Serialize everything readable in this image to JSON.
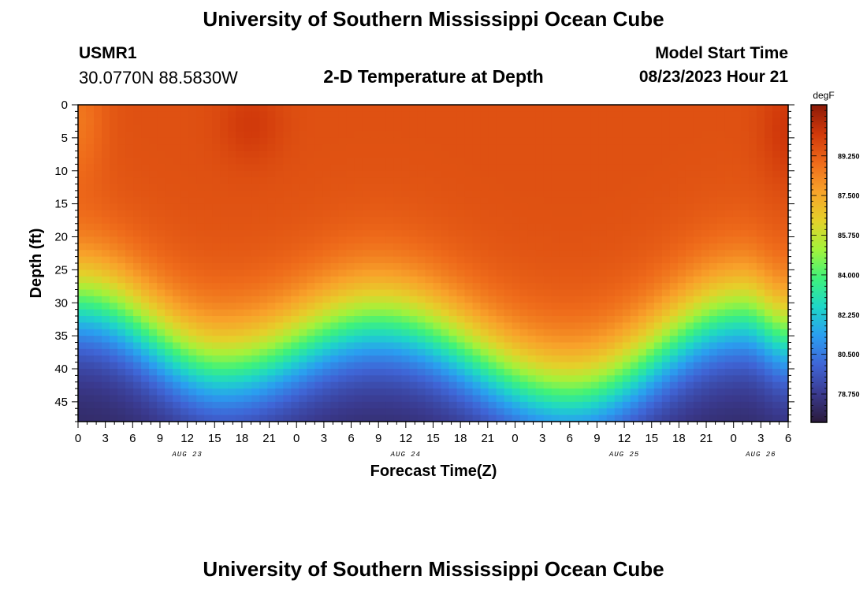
{
  "header": {
    "title": "University of Southern Mississippi Ocean Cube",
    "station": "USMR1",
    "coords": "30.0770N  88.5830W",
    "subtitle": "2-D Temperature at Depth",
    "model_start_label": "Model Start Time",
    "model_start_value": "08/23/2023 Hour 21"
  },
  "footer": {
    "title": "University of Southern Mississippi Ocean Cube"
  },
  "chart_data": {
    "type": "heatmap",
    "title": "2-D Temperature at Depth",
    "xlabel": "Forecast Time(Z)",
    "ylabel": "Depth (ft)",
    "x_tick_labels": [
      "0",
      "3",
      "6",
      "9",
      "12",
      "15",
      "18",
      "21",
      "0",
      "3",
      "6",
      "9",
      "12",
      "15",
      "18",
      "21",
      "0",
      "3",
      "6",
      "9",
      "12",
      "15",
      "18",
      "21",
      "0",
      "3",
      "6"
    ],
    "x_range_hours": [
      0,
      78
    ],
    "date_labels": [
      {
        "label": "AUG 23",
        "hour": 12
      },
      {
        "label": "AUG 24",
        "hour": 36
      },
      {
        "label": "AUG 25",
        "hour": 60
      },
      {
        "label": "AUG 26",
        "hour": 75
      }
    ],
    "y_ticks": [
      0,
      5,
      10,
      15,
      20,
      25,
      30,
      35,
      40,
      45
    ],
    "y_range": [
      0,
      48
    ],
    "colorbar": {
      "unit": "degF",
      "range": [
        77.5,
        91.5
      ],
      "ticks": [
        "89.250",
        "87.500",
        "85.750",
        "84.000",
        "82.250",
        "80.500",
        "78.750"
      ],
      "tick_values": [
        89.25,
        87.5,
        85.75,
        84.0,
        82.25,
        80.5,
        78.75
      ],
      "colors": [
        "#2a1a3a",
        "#3a3a8f",
        "#3f65d6",
        "#2a9ef0",
        "#1ed6c8",
        "#3ff27a",
        "#a4f23a",
        "#e5d02a",
        "#f8a22a",
        "#ee6a1a",
        "#d0380a",
        "#8c1a08"
      ]
    },
    "field_description": {
      "surface_temp_degF": 89.6,
      "bottom_temp_degF": 78.0,
      "thermocline_depth_ft": [
        {
          "hour": 0,
          "depth": 30
        },
        {
          "hour": 16,
          "depth": 40
        },
        {
          "hour": 33,
          "depth": 33
        },
        {
          "hour": 54,
          "depth": 44
        },
        {
          "hour": 73,
          "depth": 32
        },
        {
          "hour": 78,
          "depth": 35
        }
      ]
    }
  }
}
